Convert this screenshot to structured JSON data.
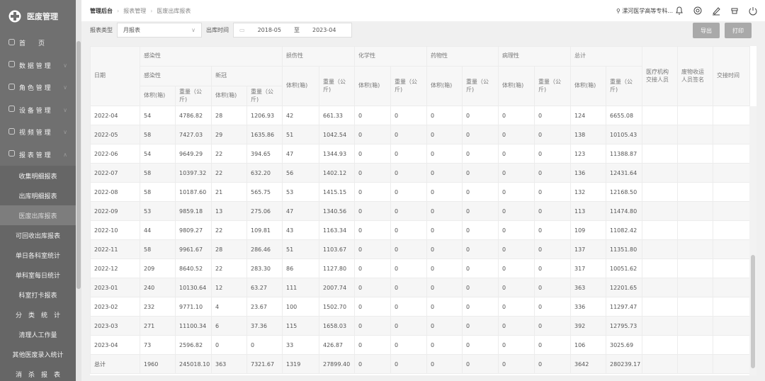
{
  "sidebar": {
    "logo": "医废管理",
    "menu": [
      "首　　页",
      "数 据 管 理",
      "角 色 管 理",
      "设 备 管 理",
      "视 频 管 理",
      "报 表 管 理"
    ],
    "submenu": [
      "收集明细报表",
      "出库明细报表",
      "医废出库报表",
      "可回收出库报表",
      "单日各科室统计",
      "单科室每日统计",
      "科室打卡报表",
      "分　类　统　计",
      "清理人工作量",
      "其他医废录入统计",
      "消　杀　报　表"
    ],
    "active_submenu": 2
  },
  "header": {
    "breadcrumb": [
      "管理后台",
      "报表管理",
      "医废出库报表"
    ],
    "user": "漯河医学高等专科..."
  },
  "filters": {
    "type_label": "报表类型",
    "type_value": "月报表",
    "time_label": "出库时间",
    "start": "2018-05",
    "to": "至",
    "end": "2023-04"
  },
  "buttons": [
    "导出",
    "打印"
  ],
  "table": {
    "headers": {
      "date": "日期",
      "infectious": "感染性",
      "injurious": "损伤性",
      "chemical": "化学性",
      "drug": "药物性",
      "pathological": "病理性",
      "total": "总计",
      "handover_staff": "医疗机构交接人员",
      "collector_signature": "废物收运人员签名",
      "handover_time": "交接时间",
      "infectious_sub": "感染性",
      "covid": "新冠",
      "volume": "体积(箱)",
      "weight": "重量（公斤)"
    },
    "rows": [
      [
        "2022-04",
        "54",
        "4786.82",
        "28",
        "1206.93",
        "42",
        "661.33",
        "0",
        "0",
        "0",
        "0",
        "0",
        "0",
        "124",
        "6655.08"
      ],
      [
        "2022-05",
        "58",
        "7427.03",
        "29",
        "1635.86",
        "51",
        "1042.54",
        "0",
        "0",
        "0",
        "0",
        "0",
        "0",
        "138",
        "10105.43"
      ],
      [
        "2022-06",
        "54",
        "9649.29",
        "22",
        "394.65",
        "47",
        "1344.93",
        "0",
        "0",
        "0",
        "0",
        "0",
        "0",
        "123",
        "11388.87"
      ],
      [
        "2022-07",
        "58",
        "10397.32",
        "22",
        "632.20",
        "56",
        "1402.12",
        "0",
        "0",
        "0",
        "0",
        "0",
        "0",
        "136",
        "12431.64"
      ],
      [
        "2022-08",
        "58",
        "10187.60",
        "21",
        "565.75",
        "53",
        "1415.15",
        "0",
        "0",
        "0",
        "0",
        "0",
        "0",
        "132",
        "12168.50"
      ],
      [
        "2022-09",
        "53",
        "9859.18",
        "13",
        "275.06",
        "47",
        "1340.56",
        "0",
        "0",
        "0",
        "0",
        "0",
        "0",
        "113",
        "11474.80"
      ],
      [
        "2022-10",
        "44",
        "9809.27",
        "22",
        "109.81",
        "43",
        "1163.34",
        "0",
        "0",
        "0",
        "0",
        "0",
        "0",
        "109",
        "11082.42"
      ],
      [
        "2022-11",
        "58",
        "9961.67",
        "28",
        "286.46",
        "51",
        "1103.67",
        "0",
        "0",
        "0",
        "0",
        "0",
        "0",
        "137",
        "11351.80"
      ],
      [
        "2022-12",
        "209",
        "8640.52",
        "22",
        "283.30",
        "86",
        "1127.80",
        "0",
        "0",
        "0",
        "0",
        "0",
        "0",
        "317",
        "10051.62"
      ],
      [
        "2023-01",
        "240",
        "10130.64",
        "12",
        "63.27",
        "111",
        "2007.74",
        "0",
        "0",
        "0",
        "0",
        "0",
        "0",
        "363",
        "12201.65"
      ],
      [
        "2023-02",
        "232",
        "9771.10",
        "4",
        "23.67",
        "100",
        "1502.70",
        "0",
        "0",
        "0",
        "0",
        "0",
        "0",
        "336",
        "11297.47"
      ],
      [
        "2023-03",
        "271",
        "11100.34",
        "6",
        "37.36",
        "115",
        "1658.03",
        "0",
        "0",
        "0",
        "0",
        "0",
        "0",
        "392",
        "12795.73"
      ],
      [
        "2023-04",
        "73",
        "2596.82",
        "0",
        "0",
        "33",
        "426.87",
        "0",
        "0",
        "0",
        "0",
        "0",
        "0",
        "106",
        "3025.69"
      ],
      [
        "总计",
        "1960",
        "245018.10",
        "363",
        "7321.67",
        "1319",
        "27899.40",
        "0",
        "0",
        "0",
        "0",
        "0",
        "0",
        "3642",
        "280239.17"
      ]
    ]
  }
}
